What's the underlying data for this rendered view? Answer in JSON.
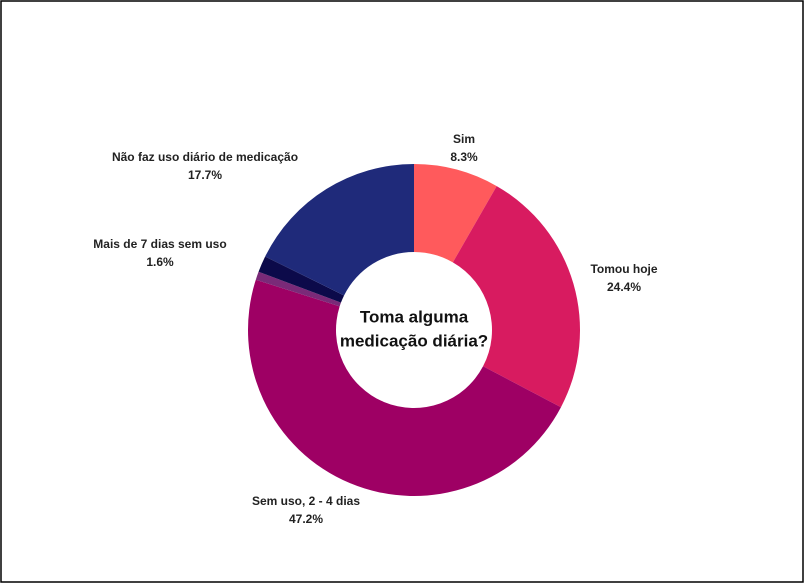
{
  "chart_data": {
    "type": "donut",
    "center_label": [
      "Toma alguma",
      "medicação diária?"
    ],
    "categories": [
      "Sim",
      "Tomou hoje",
      "Sem uso, 2 - 4 dias",
      null,
      "Mais de 7 dias sem uso",
      "Não faz uso diário de medicação"
    ],
    "values": [
      8.3,
      24.4,
      47.2,
      0.8,
      1.6,
      17.7
    ],
    "value_labels": [
      "8.3%",
      "24.4%",
      "47.2%",
      null,
      "1.6%",
      "17.7%"
    ],
    "colors": [
      "#ff5a5c",
      "#d81b60",
      "#9e0064",
      "#7a2a78",
      "#0c0a4a",
      "#1f2a7a"
    ]
  }
}
